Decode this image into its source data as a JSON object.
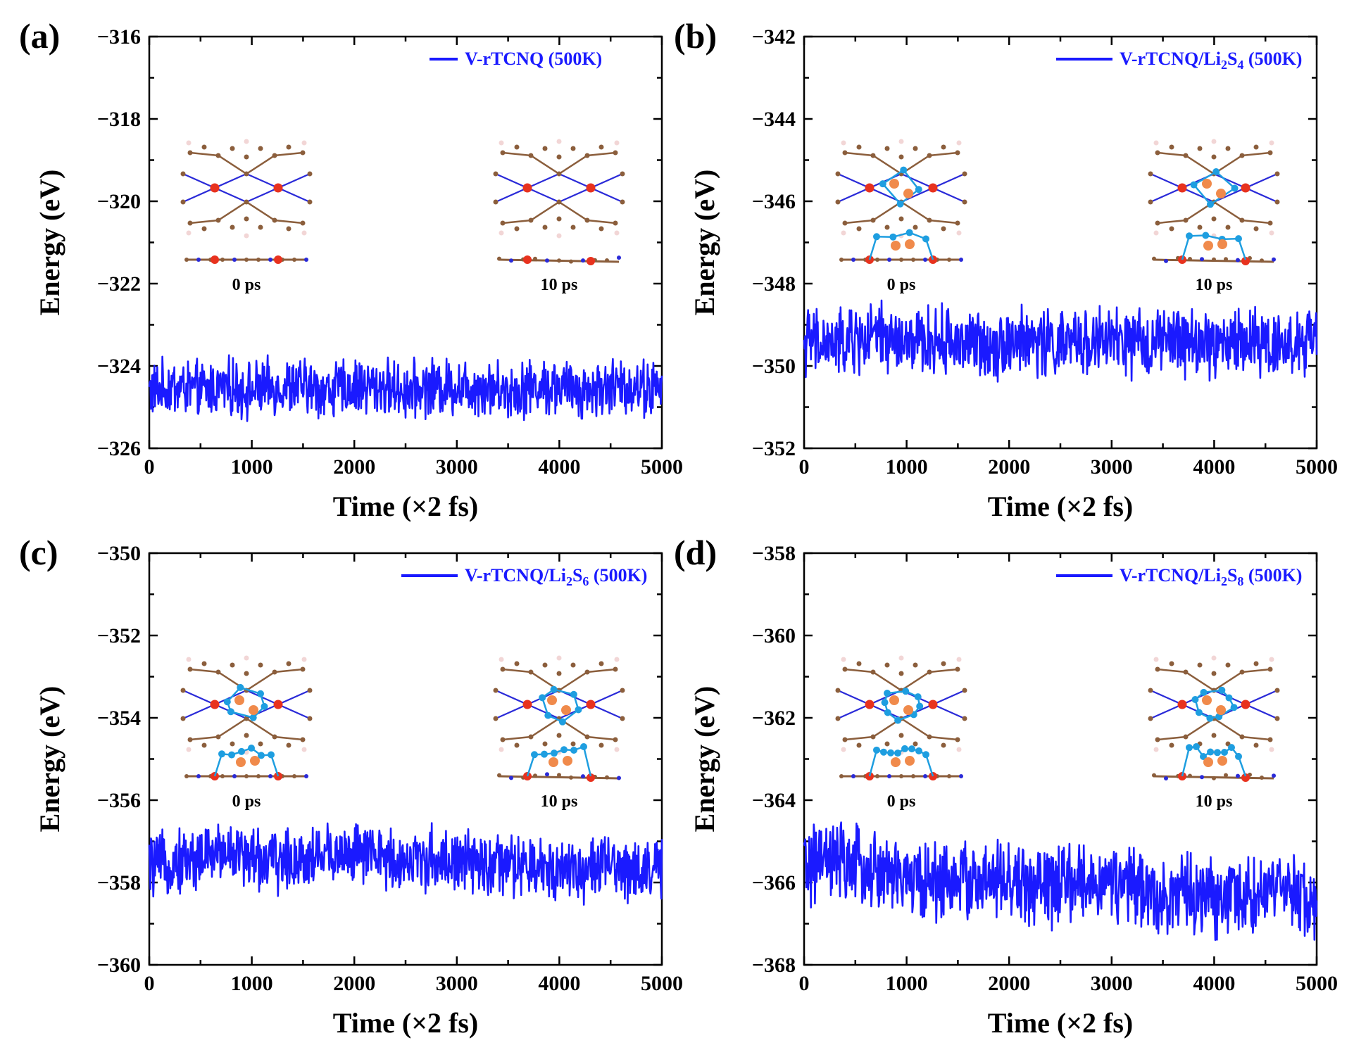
{
  "figure": {
    "series_color": "#1a1aff",
    "atom_colors": {
      "V": "#e8321e",
      "C": "#8b5e3c",
      "N": "#2a2ad8",
      "H": "#f2d6d6",
      "S": "#1e9ee0",
      "Li": "#f08a4b"
    }
  },
  "chart_data": [
    {
      "panel": "(a)",
      "type": "line",
      "xlabel": "Time (×2 fs)",
      "ylabel": "Energy (eV)",
      "xlim": [
        0,
        5000
      ],
      "ylim": [
        -326,
        -316
      ],
      "xticks": [
        "0",
        "1000",
        "2000",
        "3000",
        "4000",
        "5000"
      ],
      "yticks": [
        "−326",
        "−324",
        "−322",
        "−320",
        "−318",
        "−316"
      ],
      "legend": {
        "text": "V-rTCNQ (500K)",
        "sub": "",
        "after": "",
        "position": "top-right"
      },
      "snapshots": [
        "0 ps",
        "10 ps"
      ],
      "adsorbed_S": 0,
      "series": [
        {
          "name": "V-rTCNQ (500K)",
          "x": [
            0,
            250,
            500,
            750,
            1000,
            1250,
            1500,
            1750,
            2000,
            2250,
            2500,
            2750,
            3000,
            3250,
            3500,
            3750,
            4000,
            4250,
            4500,
            4750,
            5000
          ],
          "y": [
            -324.6,
            -324.5,
            -324.6,
            -324.5,
            -324.6,
            -324.5,
            -324.5,
            -324.6,
            -324.5,
            -324.5,
            -324.6,
            -324.5,
            -324.5,
            -324.5,
            -324.6,
            -324.5,
            -324.5,
            -324.6,
            -324.5,
            -324.5,
            -324.6
          ],
          "y_min": -325.6,
          "y_max": -323.4
        }
      ]
    },
    {
      "panel": "(b)",
      "type": "line",
      "xlabel": "Time (×2 fs)",
      "ylabel": "Energy (eV)",
      "xlim": [
        0,
        5000
      ],
      "ylim": [
        -352,
        -342
      ],
      "xticks": [
        "0",
        "1000",
        "2000",
        "3000",
        "4000",
        "5000"
      ],
      "yticks": [
        "−352",
        "−350",
        "−348",
        "−346",
        "−344",
        "−342"
      ],
      "legend": {
        "text": "V-rTCNQ/Li",
        "sub": "2",
        "after": "S",
        "sub2": "4",
        "tail": " (500K)",
        "position": "top-right"
      },
      "snapshots": [
        "0 ps",
        "10 ps"
      ],
      "adsorbed_S": 4,
      "series": [
        {
          "name": "V-rTCNQ/Li2S4 (500K)",
          "x": [
            0,
            250,
            500,
            750,
            1000,
            1250,
            1500,
            1750,
            2000,
            2250,
            2500,
            2750,
            3000,
            3250,
            3500,
            3750,
            4000,
            4250,
            4500,
            4750,
            5000
          ],
          "y": [
            -349.4,
            -349.5,
            -349.4,
            -349.3,
            -349.5,
            -349.4,
            -349.4,
            -349.5,
            -349.4,
            -349.4,
            -349.5,
            -349.4,
            -349.4,
            -349.5,
            -349.4,
            -349.4,
            -349.5,
            -349.4,
            -349.4,
            -349.5,
            -349.4
          ],
          "y_min": -350.6,
          "y_max": -348.0
        }
      ]
    },
    {
      "panel": "(c)",
      "type": "line",
      "xlabel": "Time (×2 fs)",
      "ylabel": "Energy (eV)",
      "xlim": [
        0,
        5000
      ],
      "ylim": [
        -360,
        -350
      ],
      "xticks": [
        "0",
        "1000",
        "2000",
        "3000",
        "4000",
        "5000"
      ],
      "yticks": [
        "−360",
        "−358",
        "−356",
        "−354",
        "−352",
        "−350"
      ],
      "legend": {
        "text": "V-rTCNQ/Li",
        "sub": "2",
        "after": "S",
        "sub2": "6",
        "tail": " (500K)",
        "position": "top-right"
      },
      "snapshots": [
        "0 ps",
        "10 ps"
      ],
      "adsorbed_S": 6,
      "series": [
        {
          "name": "V-rTCNQ/Li2S6 (500K)",
          "x": [
            0,
            250,
            500,
            750,
            1000,
            1250,
            1500,
            1750,
            2000,
            2250,
            2500,
            2750,
            3000,
            3250,
            3500,
            3750,
            4000,
            4250,
            4500,
            4750,
            5000
          ],
          "y": [
            -357.6,
            -357.5,
            -357.4,
            -357.2,
            -357.4,
            -357.5,
            -357.4,
            -357.3,
            -357.3,
            -357.4,
            -357.5,
            -357.4,
            -357.5,
            -357.6,
            -357.6,
            -357.7,
            -357.6,
            -357.7,
            -357.6,
            -357.7,
            -357.7
          ],
          "y_min": -358.7,
          "y_max": -356.0
        }
      ]
    },
    {
      "panel": "(d)",
      "type": "line",
      "xlabel": "Time (×2 fs)",
      "ylabel": "Energy (eV)",
      "xlim": [
        0,
        5000
      ],
      "ylim": [
        -368,
        -358
      ],
      "xticks": [
        "0",
        "1000",
        "2000",
        "3000",
        "4000",
        "5000"
      ],
      "yticks": [
        "−368",
        "−366",
        "−364",
        "−362",
        "−360",
        "−358"
      ],
      "legend": {
        "text": "V-rTCNQ/Li",
        "sub": "2",
        "after": "S",
        "sub2": "8",
        "tail": " (500K)",
        "position": "top-right"
      },
      "snapshots": [
        "0 ps",
        "10 ps"
      ],
      "adsorbed_S": 8,
      "series": [
        {
          "name": "V-rTCNQ/Li2S8 (500K)",
          "x": [
            0,
            250,
            500,
            750,
            1000,
            1250,
            1500,
            1750,
            2000,
            2250,
            2500,
            2750,
            3000,
            3250,
            3500,
            3750,
            4000,
            4250,
            4500,
            4750,
            5000
          ],
          "y": [
            -365.6,
            -365.5,
            -365.6,
            -365.8,
            -365.9,
            -366.0,
            -365.9,
            -366.0,
            -366.0,
            -366.1,
            -366.1,
            -366.0,
            -366.0,
            -366.2,
            -366.3,
            -366.3,
            -366.4,
            -366.3,
            -366.3,
            -366.2,
            -366.5
          ],
          "y_min": -367.6,
          "y_max": -364.2
        }
      ]
    }
  ]
}
